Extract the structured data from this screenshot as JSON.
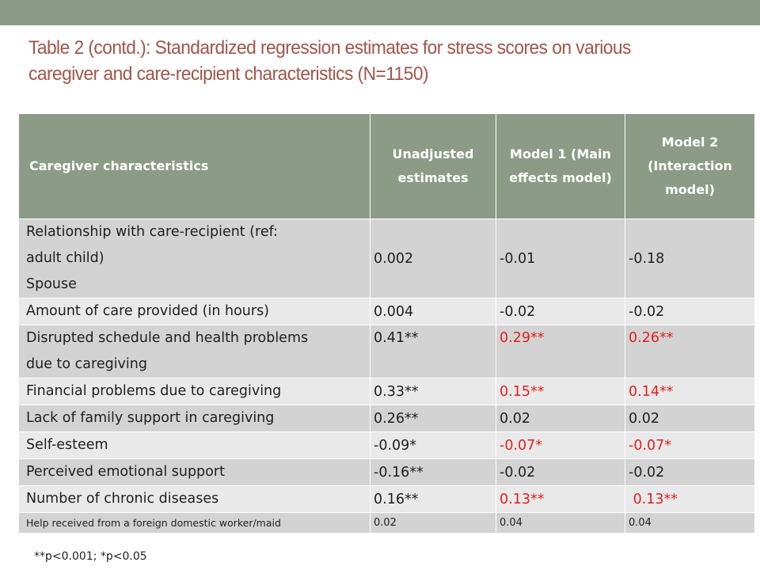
{
  "slide": {
    "title": "Table 2 (contd.): Standardized regression estimates for stress scores on various caregiver and care-recipient characteristics (N=1150)",
    "footnote": "**p<0.001; *p<0.05"
  },
  "table": {
    "headers": [
      "Caregiver characteristics",
      "Unadjusted estimates",
      "Model 1 (Main effects model)",
      "Model 2 (Interaction model)"
    ],
    "rows": [
      {
        "label_lines": [
          "Relationship with care-recipient (ref:",
          "adult child)",
          "Spouse"
        ],
        "unadjusted": "0.002",
        "model1": "-0.01",
        "model2": "-0.18"
      },
      {
        "label": "Amount of care provided (in hours)",
        "unadjusted": "0.004",
        "model1": "-0.02",
        "model2": "-0.02"
      },
      {
        "label_lines": [
          "Disrupted schedule and health problems",
          "due to caregiving"
        ],
        "unadjusted": "0.41**",
        "model1": "0.29**",
        "model2": "0.26**"
      },
      {
        "label": "Financial problems due to caregiving",
        "unadjusted": "0.33**",
        "model1": "0.15**",
        "model2": "0.14**"
      },
      {
        "label": "Lack of family support in caregiving",
        "unadjusted": "0.26**",
        "model1": "0.02",
        "model2": "0.02"
      },
      {
        "label": "Self-esteem",
        "unadjusted": "-0.09*",
        "model1": "-0.07*",
        "model2": "-0.07*"
      },
      {
        "label": "Perceived emotional support",
        "unadjusted": "-0.16**",
        "model1": "-0.02",
        "model2": "-0.02"
      },
      {
        "label": "Number of chronic diseases",
        "unadjusted": "0.16**",
        "model1": "0.13**",
        "model2": " 0.13**"
      },
      {
        "label": "Help received from a foreign domestic worker/maid",
        "unadjusted": "0.02",
        "model1": "0.04",
        "model2": "0.04"
      }
    ]
  },
  "colors": {
    "header_bg": "#8c9b86",
    "title": "#a2554a",
    "significant": "#e31f1f",
    "row_dark": "#d3d3d3",
    "row_light": "#e9e9e9"
  }
}
